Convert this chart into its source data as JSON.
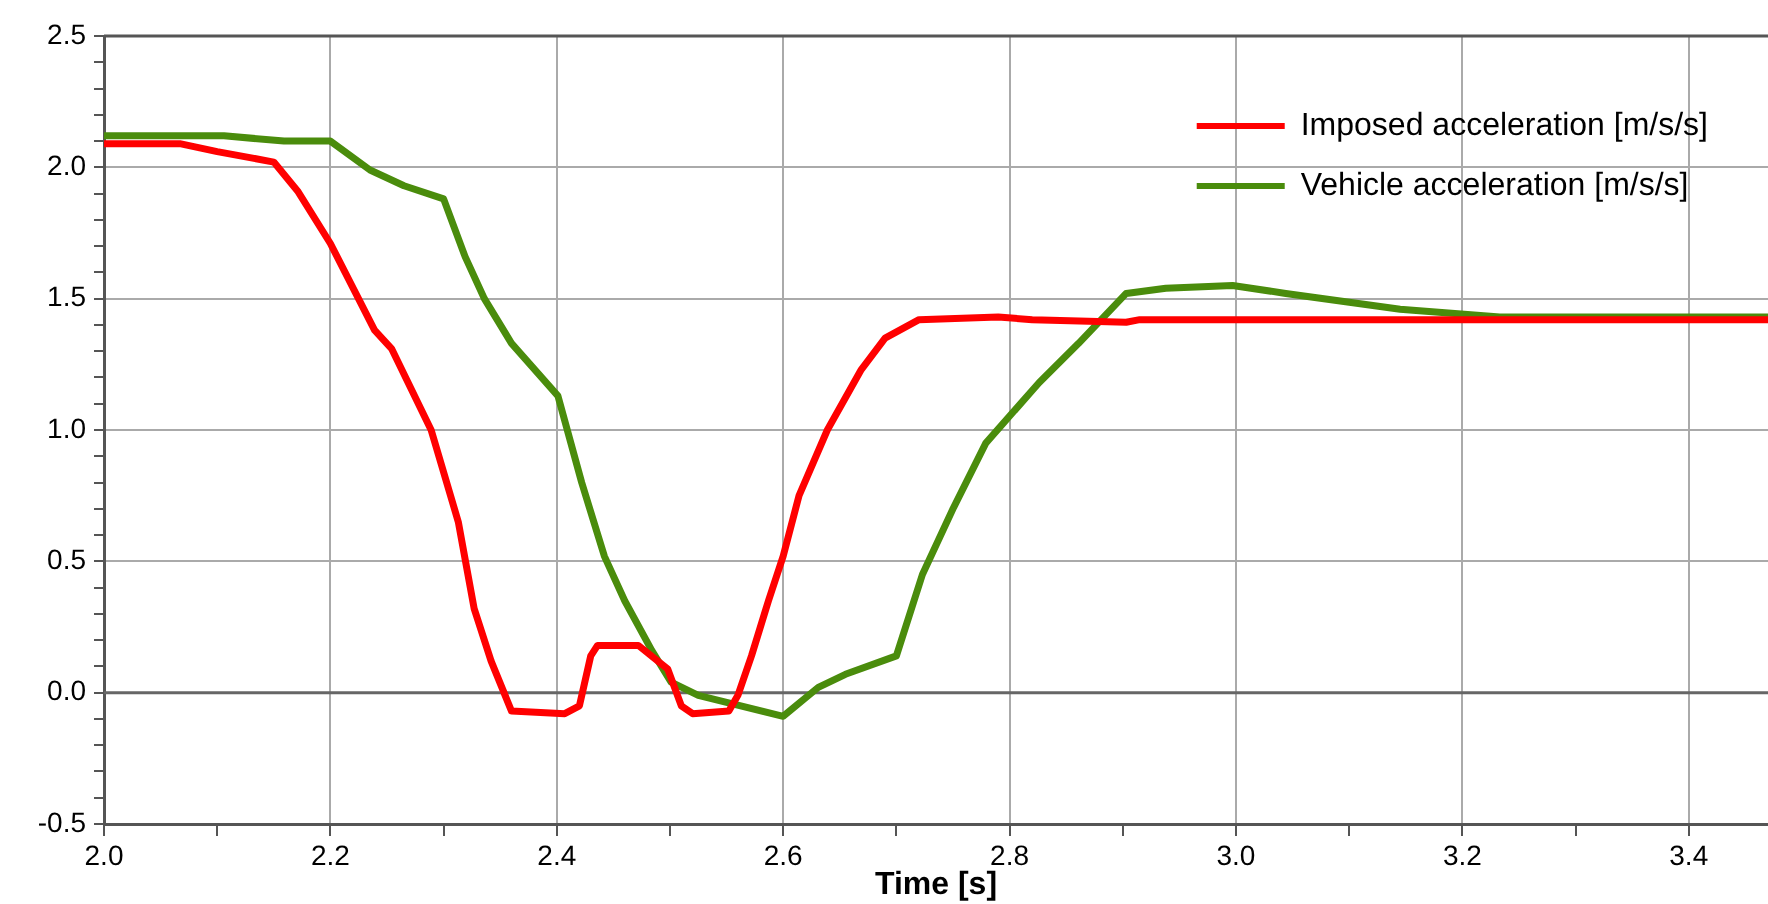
{
  "chart_data": {
    "type": "line",
    "xlabel": "Time [s]",
    "xlim": [
      2.0,
      3.47
    ],
    "xticks": [
      {
        "value": 2.0,
        "label": "2.0"
      },
      {
        "value": 2.1,
        "label": null
      },
      2.2,
      {
        "value": 2.3,
        "label": null
      },
      2.4,
      {
        "value": 2.5,
        "label": null
      },
      2.6,
      {
        "value": 2.7,
        "label": null
      },
      2.8,
      {
        "value": 2.9,
        "label": null
      },
      {
        "value": 3.0,
        "label": "3.0"
      },
      {
        "value": 3.1,
        "label": null
      },
      3.2,
      {
        "value": 3.3,
        "label": null
      },
      3.4
    ],
    "ylim": [
      -0.5,
      2.5
    ],
    "yticks": [
      -0.5,
      {
        "value": -0.4,
        "label": null
      },
      {
        "value": -0.3,
        "label": null
      },
      {
        "value": -0.2,
        "label": null
      },
      {
        "value": -0.1,
        "label": null
      },
      {
        "value": 0,
        "label": "0.0"
      },
      {
        "value": 0.1,
        "label": null
      },
      {
        "value": 0.2,
        "label": null
      },
      {
        "value": 0.3,
        "label": null
      },
      {
        "value": 0.4,
        "label": null
      },
      0.5,
      {
        "value": 0.6,
        "label": null
      },
      {
        "value": 0.7,
        "label": null
      },
      {
        "value": 0.8,
        "label": null
      },
      {
        "value": 0.9,
        "label": null
      },
      {
        "value": 1.0,
        "label": "1.0"
      },
      {
        "value": 1.1,
        "label": null
      },
      {
        "value": 1.2,
        "label": null
      },
      {
        "value": 1.3,
        "label": null
      },
      {
        "value": 1.4,
        "label": null
      },
      1.5,
      {
        "value": 1.6,
        "label": null
      },
      {
        "value": 1.7,
        "label": null
      },
      {
        "value": 1.8,
        "label": null
      },
      {
        "value": 1.9,
        "label": null
      },
      {
        "value": 2.0,
        "label": "2.0"
      },
      {
        "value": 2.1,
        "label": null
      },
      {
        "value": 2.2,
        "label": null
      },
      {
        "value": 2.3,
        "label": null
      },
      {
        "value": 2.4,
        "label": null
      },
      2.5
    ],
    "grid": true,
    "legend": "top right",
    "marker": "none",
    "line_style": "solid",
    "ref_lines": [
      {
        "axis": "y",
        "value": 0,
        "color": "#666666"
      }
    ],
    "series": [
      {
        "name": "Imposed acceleration [m/s/s]",
        "color": "#ff0000",
        "x": [
          2.0,
          2.067,
          2.1,
          2.15,
          2.171,
          2.2,
          2.239,
          2.254,
          2.289,
          2.313,
          2.327,
          2.342,
          2.36,
          2.407,
          2.42,
          2.43,
          2.436,
          2.472,
          2.498,
          2.51,
          2.52,
          2.552,
          2.56,
          2.572,
          2.587,
          2.6,
          2.614,
          2.639,
          2.669,
          2.69,
          2.72,
          2.79,
          2.82,
          2.903,
          2.915,
          3.47
        ],
        "values": [
          2.09,
          2.09,
          2.06,
          2.02,
          1.91,
          1.71,
          1.38,
          1.31,
          1.0,
          0.65,
          0.32,
          0.12,
          -0.07,
          -0.08,
          -0.05,
          0.14,
          0.18,
          0.18,
          0.09,
          -0.05,
          -0.08,
          -0.07,
          -0.01,
          0.14,
          0.35,
          0.52,
          0.75,
          1.0,
          1.23,
          1.35,
          1.42,
          1.43,
          1.42,
          1.41,
          1.42,
          1.42
        ]
      },
      {
        "name": "Vehicle acceleration [m/s/s]",
        "color": "#4a8c0c",
        "x": [
          2.0,
          2.106,
          2.159,
          2.2,
          2.235,
          2.265,
          2.3,
          2.319,
          2.336,
          2.36,
          2.401,
          2.422,
          2.442,
          2.46,
          2.484,
          2.501,
          2.525,
          2.6,
          2.631,
          2.655,
          2.7,
          2.723,
          2.75,
          2.779,
          2.826,
          2.861,
          2.903,
          2.938,
          2.997,
          3.044,
          3.145,
          3.233,
          3.47
        ],
        "values": [
          2.12,
          2.12,
          2.1,
          2.1,
          1.99,
          1.93,
          1.88,
          1.66,
          1.5,
          1.33,
          1.13,
          0.8,
          0.52,
          0.35,
          0.16,
          0.04,
          -0.01,
          -0.09,
          0.02,
          0.07,
          0.14,
          0.45,
          0.7,
          0.95,
          1.18,
          1.33,
          1.52,
          1.54,
          1.55,
          1.52,
          1.46,
          1.43,
          1.43
        ]
      }
    ]
  }
}
